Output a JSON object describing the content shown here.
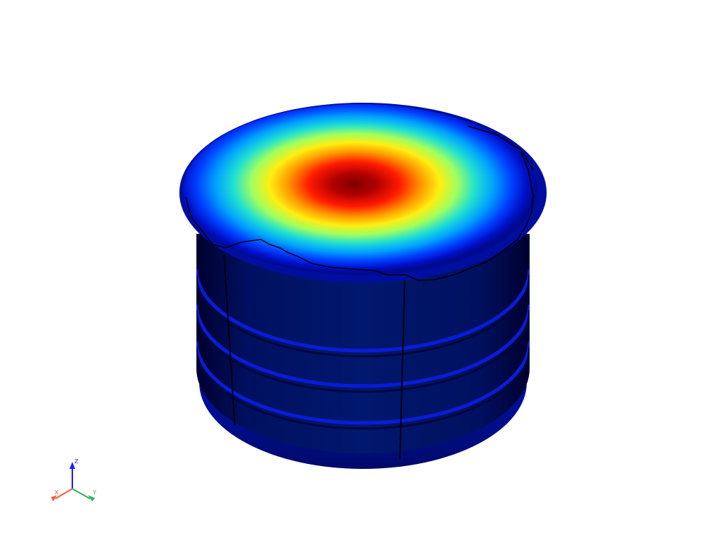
{
  "scene": {
    "background": "#ffffff",
    "object": "cylindrical-tank",
    "colormap": [
      "#00007f",
      "#0000ff",
      "#00bfff",
      "#7fff7f",
      "#ffff00",
      "#ff7f00",
      "#ff0000",
      "#7f0000"
    ]
  },
  "axes": {
    "x_label": "X",
    "y_label": "Y",
    "z_label": "Z",
    "x_color": "#f05a3c",
    "y_color": "#2db35a",
    "z_color": "#1a1aff"
  }
}
